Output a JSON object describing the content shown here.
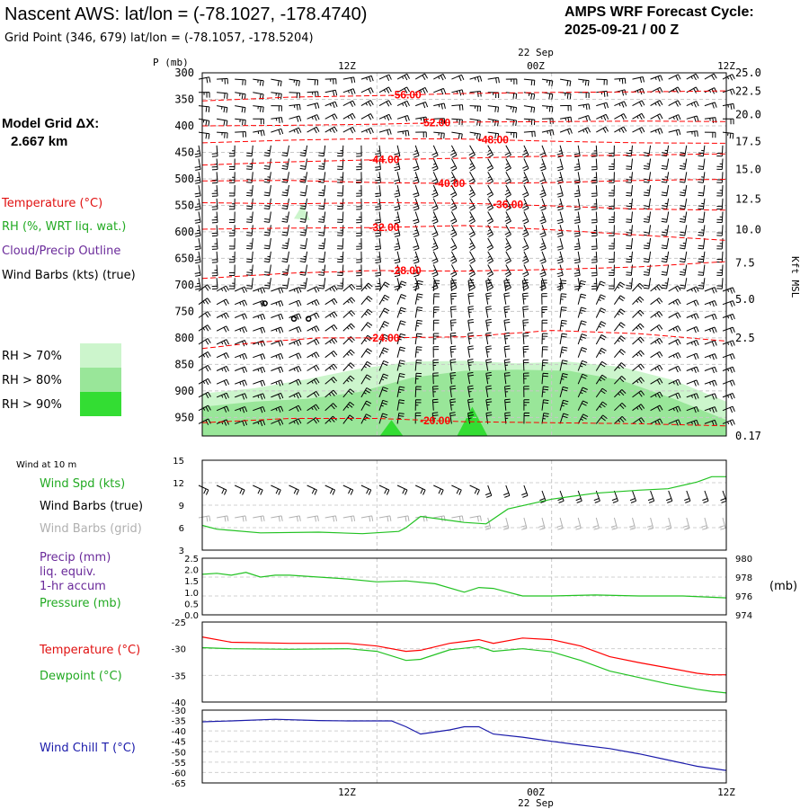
{
  "header": {
    "title": "Nascent AWS:  lat/lon = (-78.1027, -178.4740)",
    "grid_point": "Grid Point (346, 679) lat/lon = (-78.1057, -178.5204)",
    "cycle_line1": "AMPS WRF Forecast Cycle:",
    "cycle_line2": "2025-09-21 / 00  Z"
  },
  "time_axis": {
    "date_label": "22 Sep",
    "ticks": [
      "12Z",
      "00Z",
      "12Z"
    ],
    "hours_total": 36,
    "tick_hours": [
      12,
      24,
      36
    ]
  },
  "colors": {
    "temperature": "#ff0000",
    "rh": "#22c222",
    "cloud": "#6a2a9a",
    "wind": "#000000",
    "wind_grid": "#b0b0b0",
    "precip": "#6a2a9a",
    "pressure": "#22c222",
    "dewpoint": "#22c222",
    "windchill": "#1a1aaa",
    "rh70": "#ccf5cc",
    "rh80": "#99e699",
    "rh90": "#33dd33"
  },
  "left_panel": {
    "model_grid_label": "Model Grid ΔX:",
    "model_grid_value": "2.667 km",
    "legend_temperature": "Temperature (°C)",
    "legend_rh": "RH (%, WRT liq. wat.)",
    "legend_cloud": "Cloud/Precip Outline",
    "legend_wind": "Wind Barbs (kts) (true)",
    "rh_legend": [
      "RH > 70%",
      "RH > 80%",
      "RH > 90%"
    ]
  },
  "lower_legends": {
    "wind10m": "Wind at 10 m",
    "wind_spd": "Wind Spd (kts)",
    "wind_barbs_true": "Wind Barbs (true)",
    "wind_barbs_grid": "Wind Barbs (grid)",
    "precip1": "Precip (mm)",
    "precip2": "liq. equiv.",
    "precip3": "1-hr accum",
    "pressure": "Pressure (mb)",
    "pressure_unit": "(mb)",
    "temperature": "Temperature (°C)",
    "dewpoint": "Dewpoint (°C)",
    "windchill": "Wind Chill T (°C)"
  },
  "chart_data": [
    {
      "type": "line",
      "name": "upper-air-cross-section",
      "y_axis_label": "P (mb)",
      "y_right_label": "Kft MSL",
      "pressure_levels": [
        300,
        350,
        400,
        450,
        500,
        550,
        600,
        650,
        700,
        750,
        800,
        850,
        900,
        950
      ],
      "ylim": [
        300,
        985
      ],
      "right_ticks": [
        {
          "label": "25.0",
          "p": 300
        },
        {
          "label": "22.5",
          "p": 335
        },
        {
          "label": "20.0",
          "p": 379
        },
        {
          "label": "17.5",
          "p": 430
        },
        {
          "label": "15.0",
          "p": 482
        },
        {
          "label": "12.5",
          "p": 538
        },
        {
          "label": "10.0",
          "p": 596
        },
        {
          "label": "7.5",
          "p": 659
        },
        {
          "label": "5.0",
          "p": 727
        },
        {
          "label": "2.5",
          "p": 800
        },
        {
          "label": "0.17",
          "p": 985
        }
      ],
      "isotherms": [
        {
          "label": "-56.00",
          "label_hour": 14,
          "x": [
            0,
            6,
            12,
            18,
            24,
            30,
            36
          ],
          "p": [
            353,
            346,
            343,
            339,
            337,
            336,
            334
          ]
        },
        {
          "label": "-52.00",
          "label_hour": 16,
          "x": [
            0,
            6,
            12,
            18,
            24,
            30,
            36
          ],
          "p": [
            400,
            399,
            397,
            393,
            392,
            391,
            392
          ]
        },
        {
          "label": "-48.00",
          "label_hour": 20,
          "x": [
            0,
            6,
            12,
            18,
            24,
            30,
            36
          ],
          "p": [
            432,
            427,
            424,
            425,
            429,
            432,
            433
          ]
        },
        {
          "label": "-44.00",
          "label_hour": 12.5,
          "x": [
            0,
            6,
            12,
            18,
            24,
            30,
            36
          ],
          "p": [
            474,
            468,
            464,
            461,
            457,
            455,
            453
          ]
        },
        {
          "label": "-40.00",
          "label_hour": 17,
          "x": [
            0,
            6,
            12,
            18,
            24,
            30,
            36
          ],
          "p": [
            504,
            503,
            507,
            509,
            507,
            503,
            501
          ]
        },
        {
          "label": "-36.00",
          "label_hour": 21,
          "x": [
            0,
            6,
            12,
            18,
            24,
            30,
            36
          ],
          "p": [
            545,
            547,
            545,
            546,
            551,
            557,
            559
          ]
        },
        {
          "label": "-32.00",
          "label_hour": 12.5,
          "x": [
            0,
            6,
            12,
            18,
            24,
            30,
            36
          ],
          "p": [
            595,
            593,
            592,
            588,
            596,
            606,
            616
          ]
        },
        {
          "label": "-28.00",
          "label_hour": 14,
          "x": [
            0,
            6,
            12,
            18,
            24,
            30,
            36
          ],
          "p": [
            688,
            678,
            673,
            674,
            671,
            666,
            656
          ]
        },
        {
          "label": "-24.00",
          "label_hour": 12.5,
          "x": [
            0,
            4,
            8,
            12,
            18,
            24,
            30,
            36
          ],
          "p": [
            820,
            808,
            800,
            800,
            798,
            786,
            792,
            806
          ]
        },
        {
          "label": "-20.00",
          "label_hour": 16,
          "x": [
            0,
            6,
            12,
            18,
            24,
            30,
            36
          ],
          "p": [
            960,
            952,
            952,
            958,
            960,
            962,
            966
          ]
        }
      ],
      "rh_regions": [
        {
          "threshold": "RH > 70%",
          "top_p": [
            905,
            895,
            878,
            858,
            845,
            843,
            848,
            845,
            855,
            880,
            920
          ]
        },
        {
          "threshold": "RH > 80%",
          "top_p": [
            930,
            920,
            915,
            902,
            875,
            862,
            860,
            862,
            880,
            915,
            955
          ]
        },
        {
          "threshold": "RH > 90%",
          "region_hours": [
            [
              12.2,
              13.8
            ],
            [
              17.5,
              19.6
            ]
          ],
          "top_p": [
            955,
            930
          ]
        }
      ],
      "rh_hours": [
        0,
        3.6,
        7.2,
        10.8,
        14.4,
        18,
        21.6,
        25.2,
        28.8,
        32.4,
        36
      ],
      "cloud_markers_hours": [
        4.3,
        6.3,
        7.3
      ]
    },
    {
      "type": "line",
      "name": "wind-speed-10m",
      "ylim": [
        3,
        15
      ],
      "yticks": [
        3,
        6,
        9,
        12,
        15
      ],
      "x": [
        0,
        1,
        4,
        8,
        11,
        13.5,
        14,
        15,
        18,
        19.5,
        21,
        24,
        27,
        30,
        32,
        34,
        35,
        36
      ],
      "values": [
        6.3,
        5.8,
        5.3,
        5.4,
        5.2,
        5.5,
        6.0,
        7.5,
        6.7,
        6.5,
        8.5,
        9.8,
        10.6,
        11.0,
        11.2,
        12.1,
        12.8,
        12.8
      ]
    },
    {
      "type": "line",
      "name": "pressure-precip",
      "precip_ylim": [
        0,
        2.5
      ],
      "precip_ticks": [
        "0.0",
        "0.5",
        "1.0",
        "1.5",
        "2.0",
        "2.5"
      ],
      "pressure_ylim": [
        974,
        980
      ],
      "pressure_ticks": [
        "974",
        "976",
        "978",
        "980"
      ],
      "x": [
        0,
        1,
        2,
        3,
        4,
        5,
        6,
        8,
        10,
        12,
        14,
        16,
        18,
        19,
        20,
        22,
        24,
        27,
        30,
        33,
        36
      ],
      "pressure": [
        978.3,
        978.4,
        978.2,
        978.5,
        978.0,
        978.2,
        978.2,
        978.0,
        977.8,
        977.5,
        977.6,
        977.3,
        976.4,
        976.9,
        976.8,
        976.0,
        976.0,
        976.1,
        976.0,
        976.0,
        975.8
      ]
    },
    {
      "type": "line",
      "name": "temperature-dewpoint",
      "ylim": [
        -40,
        -25
      ],
      "yticks": [
        "-25",
        "-30",
        "-35",
        "-40"
      ],
      "x": [
        0,
        2,
        6,
        10,
        12,
        14,
        15,
        17,
        19,
        20,
        22,
        24,
        26,
        28,
        30,
        32,
        34,
        35,
        36
      ],
      "temperature": [
        -27.8,
        -28.8,
        -29.0,
        -29.0,
        -29.5,
        -30.5,
        -30.3,
        -29.0,
        -28.3,
        -29.0,
        -28.0,
        -28.3,
        -29.5,
        -31.5,
        -32.6,
        -33.6,
        -34.6,
        -34.9,
        -34.9
      ],
      "dewpoint": [
        -29.8,
        -30.0,
        -30.1,
        -30.0,
        -30.5,
        -32.2,
        -32.0,
        -30.2,
        -29.6,
        -30.5,
        -30.0,
        -30.6,
        -32.2,
        -34.2,
        -35.4,
        -36.6,
        -37.6,
        -38.0,
        -38.3
      ]
    },
    {
      "type": "line",
      "name": "wind-chill",
      "ylim": [
        -65,
        -30
      ],
      "yticks": [
        "-30",
        "-35",
        "-40",
        "-45",
        "-50",
        "-55",
        "-60",
        "-65"
      ],
      "x": [
        0,
        2,
        5,
        8,
        10,
        13,
        14,
        15,
        17,
        18,
        19,
        20,
        22,
        24,
        26,
        28,
        30,
        32,
        34,
        36
      ],
      "values": [
        -35.6,
        -35.2,
        -34.4,
        -35.0,
        -35.2,
        -35.2,
        -38.0,
        -41.5,
        -39.5,
        -38.0,
        -38.0,
        -41.5,
        -43.0,
        -45.0,
        -46.8,
        -48.5,
        -51.0,
        -54.0,
        -57.0,
        -59.0
      ]
    }
  ]
}
